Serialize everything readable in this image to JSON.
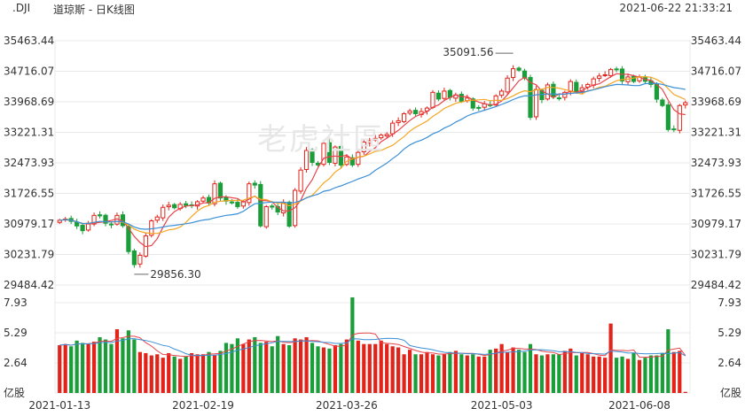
{
  "header": {
    "symbol": ".DJI",
    "title": "道琼斯 - 日K线图",
    "timestamp": "2021-06-22 21:33:21"
  },
  "watermark": {
    "text": "老虎社區"
  },
  "colors": {
    "up": "#e2231a",
    "down": "#1a9e3a",
    "ma5": "#e8424a",
    "ma10": "#f5a623",
    "ma20": "#3a8fd6",
    "grid": "#e8e8e8",
    "text": "#333333"
  },
  "chart_data": [
    {
      "type": "candlestick",
      "title": "",
      "y_ticks": [
        "35463.44",
        "34716.07",
        "33968.69",
        "33221.31",
        "32473.93",
        "31726.55",
        "30979.17",
        "30231.79",
        "29484.42"
      ],
      "ylim": [
        29484.42,
        35463.44
      ],
      "x_ticks": [
        "2021-01-13",
        "2021-02-19",
        "2021-03-26",
        "2021-05-03",
        "2021-06-08"
      ],
      "annotations": [
        {
          "label": "35091.56",
          "value": 35091.56
        },
        {
          "label": "29856.30",
          "value": 29856.3
        }
      ],
      "closes": [
        31068,
        31097,
        31041,
        30930,
        30814,
        30996,
        31188,
        31176,
        30997,
        30960,
        31188,
        30937,
        30303,
        29983,
        30212,
        30687,
        31055,
        31148,
        31385,
        31437,
        31375,
        31458,
        31430,
        31438,
        31522,
        31613,
        31493,
        31961,
        31613,
        31537,
        31494,
        31402,
        31521,
        31961,
        31930,
        30932,
        31402,
        31391,
        31270,
        31496,
        30924,
        31802,
        32297,
        32778,
        32485,
        32423,
        32953,
        32485,
        32862,
        32420,
        32619,
        32423,
        32731,
        32982,
        33015,
        33073,
        33153,
        33171,
        33446,
        33504,
        33677,
        33745,
        33677,
        33730,
        33815,
        34200,
        34036,
        34230,
        34078,
        34137,
        33982,
        34060,
        33815,
        33820,
        33918,
        33875,
        34113,
        34230,
        34548,
        34778,
        34742,
        34548,
        33587,
        34270,
        34022,
        34382,
        34084,
        34060,
        34200,
        34464,
        34207,
        34312,
        34393,
        34529,
        34600,
        34630,
        34757,
        34756,
        34479,
        34577,
        34466,
        34580,
        34470,
        34393,
        34033,
        33877,
        33290,
        33290,
        33876,
        33945
      ],
      "ma5_start_index": 0,
      "ma10_start_index": 0,
      "ma20_start_index": 0,
      "volume_y_ticks": [
        "7.93",
        "5.29",
        "2.64",
        "亿股"
      ],
      "volume_ylim": [
        0,
        7.93
      ],
      "volumes": [
        4.2,
        4.3,
        4.1,
        4.6,
        4.4,
        4.3,
        4.5,
        4.9,
        4.7,
        4.3,
        5.6,
        4.8,
        5.5,
        4.7,
        3.6,
        3.5,
        3.3,
        3.4,
        3.1,
        3.5,
        3.2,
        3.0,
        3.2,
        3.5,
        3.4,
        3.4,
        3.6,
        3.3,
        3.7,
        4.4,
        4.3,
        4.8,
        4.3,
        4.7,
        4.9,
        4.4,
        4.5,
        4.1,
        5.0,
        4.3,
        4.2,
        4.8,
        4.7,
        4.9,
        4.4,
        4.1,
        4.0,
        3.9,
        4.2,
        4.3,
        4.7,
        8.4,
        4.6,
        4.3,
        4.3,
        4.3,
        4.6,
        4.3,
        4.1,
        4.0,
        3.4,
        3.8,
        3.4,
        3.4,
        3.6,
        3.4,
        3.3,
        3.4,
        3.6,
        3.7,
        3.4,
        3.3,
        3.4,
        3.2,
        3.2,
        3.8,
        3.9,
        4.3,
        3.6,
        4.0,
        3.8,
        3.6,
        4.3,
        3.4,
        3.3,
        3.4,
        3.4,
        3.4,
        3.7,
        3.9,
        3.3,
        3.5,
        3.4,
        3.2,
        3.2,
        3.1,
        6.1,
        3.1,
        3.2,
        3.0,
        3.5,
        2.9,
        3.1,
        3.3,
        3.3,
        3.5,
        5.6,
        3.6,
        3.7,
        0.1
      ]
    }
  ]
}
